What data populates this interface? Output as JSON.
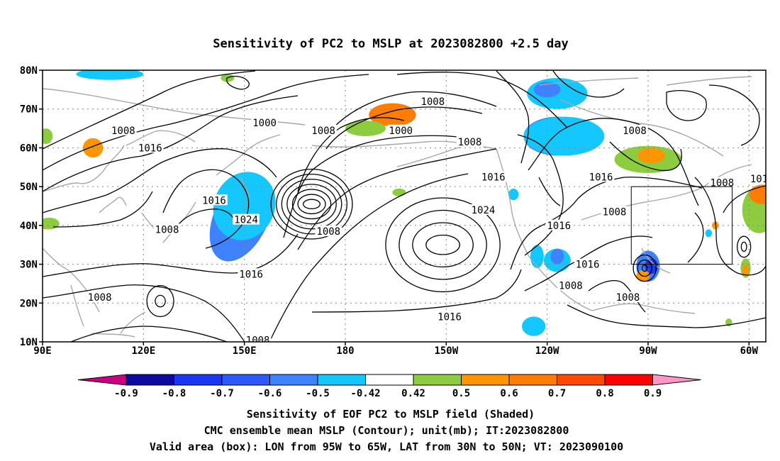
{
  "title": "Sensitivity of PC2 to MSLP at 2023082800 +2.5 day",
  "map": {
    "lat_labels": [
      "80N",
      "70N",
      "60N",
      "50N",
      "40N",
      "30N",
      "20N",
      "10N"
    ],
    "lat_values": [
      80,
      70,
      60,
      50,
      40,
      30,
      20,
      10
    ],
    "lon_labels": [
      "90E",
      "120E",
      "150E",
      "180",
      "150W",
      "120W",
      "90W",
      "60W"
    ],
    "lon_values": [
      90,
      120,
      150,
      180,
      210,
      240,
      270,
      300
    ],
    "lon_range": [
      90,
      305
    ],
    "lat_range": [
      10,
      80
    ],
    "gridlines": "dotted",
    "valid_box": {
      "lon_min": 265,
      "lon_max": 295,
      "lat_min": 30,
      "lat_max": 50
    },
    "contour_labels": [
      {
        "text": "1000",
        "lon": 156,
        "lat": 66.5
      },
      {
        "text": "1008",
        "lon": 114,
        "lat": 64.5
      },
      {
        "text": "1016",
        "lon": 122,
        "lat": 60
      },
      {
        "text": "1016",
        "lon": 141,
        "lat": 46.5
      },
      {
        "text": "1024",
        "lon": 150.5,
        "lat": 41.5
      },
      {
        "text": "1008",
        "lon": 127,
        "lat": 39
      },
      {
        "text": "1016",
        "lon": 152,
        "lat": 27.5
      },
      {
        "text": "1008",
        "lon": 107,
        "lat": 21.5
      },
      {
        "text": "1008",
        "lon": 154,
        "lat": 10.5
      },
      {
        "text": "1008",
        "lon": 175,
        "lat": 38.5
      },
      {
        "text": "1008",
        "lon": 206,
        "lat": 72
      },
      {
        "text": "1008",
        "lon": 173.5,
        "lat": 64.5
      },
      {
        "text": "1000",
        "lon": 196.5,
        "lat": 64.5
      },
      {
        "text": "1008",
        "lon": 217,
        "lat": 61.5
      },
      {
        "text": "1016",
        "lon": 224,
        "lat": 52.5
      },
      {
        "text": "1024",
        "lon": 221,
        "lat": 44
      },
      {
        "text": "1016",
        "lon": 243.5,
        "lat": 40
      },
      {
        "text": "1016",
        "lon": 211,
        "lat": 16.5
      },
      {
        "text": "1016",
        "lon": 252,
        "lat": 30
      },
      {
        "text": "1008",
        "lon": 260,
        "lat": 43.5
      },
      {
        "text": "1008",
        "lon": 247,
        "lat": 24.5
      },
      {
        "text": "1008",
        "lon": 266,
        "lat": 64.5
      },
      {
        "text": "1016",
        "lon": 256,
        "lat": 52.5
      },
      {
        "text": "1008",
        "lon": 292,
        "lat": 51
      },
      {
        "text": "1008",
        "lon": 264,
        "lat": 21.5
      },
      {
        "text": "101",
        "lon": 303,
        "lat": 52
      }
    ],
    "shading": [
      {
        "value": -0.9,
        "lon": 149,
        "lat": 42,
        "rx": 5,
        "ry": 11,
        "rot": 25,
        "color": "#1a37f2"
      },
      {
        "value": -0.6,
        "lon": 149,
        "lat": 42,
        "rx": 8,
        "ry": 12,
        "rot": 25,
        "color": "#3f82ff"
      },
      {
        "value": -0.5,
        "lon": 150,
        "lat": 45,
        "rx": 9,
        "ry": 9,
        "rot": 25,
        "color": "#14c8ff"
      },
      {
        "value": 0.6,
        "lon": 194,
        "lat": 68.5,
        "rx": 7,
        "ry": 3,
        "rot": 0,
        "color": "#ff7d00"
      },
      {
        "value": 0.5,
        "lon": 186,
        "lat": 65,
        "rx": 6,
        "ry": 2,
        "rot": 0,
        "color": "#8ccc3e"
      },
      {
        "value": 0.6,
        "lon": 105,
        "lat": 60,
        "rx": 3,
        "ry": 2.5,
        "rot": 0,
        "color": "#ff9600"
      },
      {
        "value": 0.5,
        "lon": 91,
        "lat": 63,
        "rx": 2,
        "ry": 2,
        "rot": 0,
        "color": "#8ccc3e"
      },
      {
        "value": -0.6,
        "lon": 243,
        "lat": 63,
        "rx": 10,
        "ry": 5,
        "rot": 0,
        "color": "#3f82ff"
      },
      {
        "value": -0.5,
        "lon": 245,
        "lat": 63,
        "rx": 12,
        "ry": 5,
        "rot": 0,
        "color": "#14c8ff"
      },
      {
        "value": -0.5,
        "lon": 243,
        "lat": 74,
        "rx": 9,
        "ry": 4,
        "rot": 0,
        "color": "#14c8ff"
      },
      {
        "value": -0.6,
        "lon": 240,
        "lat": 75,
        "rx": 4,
        "ry": 2,
        "rot": 0,
        "color": "#3f82ff"
      },
      {
        "value": -0.5,
        "lon": 110,
        "lat": 79,
        "rx": 10,
        "ry": 1.5,
        "rot": 0,
        "color": "#14c8ff"
      },
      {
        "value": 0.5,
        "lon": 270,
        "lat": 57,
        "rx": 10,
        "ry": 3.5,
        "rot": 0,
        "color": "#8ccc3e"
      },
      {
        "value": 0.6,
        "lon": 271,
        "lat": 58,
        "rx": 4,
        "ry": 2,
        "rot": 0,
        "color": "#ff9600"
      },
      {
        "value": -0.6,
        "lon": 270,
        "lat": 29.5,
        "rx": 3.5,
        "ry": 4,
        "rot": 0,
        "color": "#3f82ff"
      },
      {
        "value": -0.8,
        "lon": 271,
        "lat": 29.5,
        "rx": 2,
        "ry": 2,
        "rot": 0,
        "color": "#1a37f2"
      },
      {
        "value": 0.6,
        "lon": 268.5,
        "lat": 27,
        "rx": 2,
        "ry": 1.5,
        "rot": 0,
        "color": "#ff9600"
      },
      {
        "value": -0.5,
        "lon": 243,
        "lat": 31,
        "rx": 4,
        "ry": 3,
        "rot": 0,
        "color": "#14c8ff"
      },
      {
        "value": -0.6,
        "lon": 243,
        "lat": 32,
        "rx": 2,
        "ry": 2,
        "rot": 0,
        "color": "#3f82ff"
      },
      {
        "value": -0.5,
        "lon": 237,
        "lat": 32,
        "rx": 2,
        "ry": 3,
        "rot": 0,
        "color": "#14c8ff"
      },
      {
        "value": -0.5,
        "lon": 236,
        "lat": 14,
        "rx": 3.5,
        "ry": 2.5,
        "rot": 0,
        "color": "#14c8ff"
      },
      {
        "value": -0.5,
        "lon": 230,
        "lat": 48,
        "rx": 1.5,
        "ry": 1.5,
        "rot": 0,
        "color": "#14c8ff"
      },
      {
        "value": 0.5,
        "lon": 303,
        "lat": 44,
        "rx": 5,
        "ry": 6,
        "rot": 0,
        "color": "#8ccc3e"
      },
      {
        "value": 0.6,
        "lon": 304,
        "lat": 48,
        "rx": 4,
        "ry": 2.5,
        "rot": 0,
        "color": "#ff7d00"
      },
      {
        "value": 0.5,
        "lon": 299,
        "lat": 29,
        "rx": 1.5,
        "ry": 2.5,
        "rot": 0,
        "color": "#8ccc3e"
      },
      {
        "value": 0.6,
        "lon": 299,
        "lat": 28.5,
        "rx": 1,
        "ry": 1.5,
        "rot": 0,
        "color": "#ff9600"
      },
      {
        "value": 0.5,
        "lon": 294,
        "lat": 15,
        "rx": 1,
        "ry": 1,
        "rot": 0,
        "color": "#8ccc3e"
      },
      {
        "value": 0.6,
        "lon": 91,
        "lat": 40,
        "rx": 2,
        "ry": 1,
        "rot": 0,
        "color": "#ff9600"
      },
      {
        "value": 0.5,
        "lon": 92,
        "lat": 40.5,
        "rx": 3,
        "ry": 1.5,
        "rot": 0,
        "color": "#8ccc3e"
      },
      {
        "value": 0.5,
        "lon": 196,
        "lat": 48.5,
        "rx": 2,
        "ry": 1,
        "rot": 0,
        "color": "#8ccc3e"
      },
      {
        "value": 0.5,
        "lon": 145,
        "lat": 78,
        "rx": 2,
        "ry": 1,
        "rot": 0,
        "color": "#8ccc3e"
      },
      {
        "value": -0.5,
        "lon": 288,
        "lat": 38,
        "rx": 1,
        "ry": 1,
        "rot": 0,
        "color": "#14c8ff"
      },
      {
        "value": 0.6,
        "lon": 290,
        "lat": 40,
        "rx": 1,
        "ry": 1,
        "rot": 0,
        "color": "#ff9600"
      }
    ],
    "pressure_centers": [
      {
        "lon": 170,
        "lat": 45.5,
        "rings": 7,
        "rx0": 2.5,
        "ry0": 1.2,
        "drx": 1.6,
        "dry": 1.3
      },
      {
        "lon": 209,
        "lat": 35,
        "rings": 4,
        "rx0": 5,
        "ry0": 2.5,
        "drx": 4,
        "dry": 3.2
      },
      {
        "lon": 125,
        "lat": 20.5,
        "rings": 2,
        "rx0": 1.5,
        "ry0": 1.5,
        "drx": 2.5,
        "dry": 2.5
      },
      {
        "lon": 269,
        "lat": 29,
        "rings": 3,
        "rx0": 0.8,
        "ry0": 0.8,
        "drx": 1.3,
        "dry": 1.3
      },
      {
        "lon": 298.5,
        "lat": 34.5,
        "rings": 2,
        "rx0": 0.8,
        "ry0": 1.2,
        "drx": 1.2,
        "dry": 1.5
      }
    ]
  },
  "colorbar": {
    "labels": [
      "-0.9",
      "-0.8",
      "-0.7",
      "-0.6",
      "-0.5",
      "-0.42",
      "0.42",
      "0.5",
      "0.6",
      "0.7",
      "0.8",
      "0.9"
    ],
    "colors": [
      "#0a0aa0",
      "#1a37f2",
      "#2d5aff",
      "#3f82ff",
      "#14c8ff",
      "#ffffff",
      "#8ccc3e",
      "#ff9600",
      "#ff7d00",
      "#ff4a00",
      "#ff0000"
    ],
    "left_arrow_color": "#c80082",
    "right_arrow_color": "#ff96c8"
  },
  "caption": [
    "Sensitivity of EOF PC2 to MSLP field (Shaded)",
    "CMC ensemble mean MSLP (Contour); unit(mb); IT:2023082800",
    "Valid area (box): LON from 95W to 65W, LAT from 30N to 50N; VT: 2023090100"
  ]
}
